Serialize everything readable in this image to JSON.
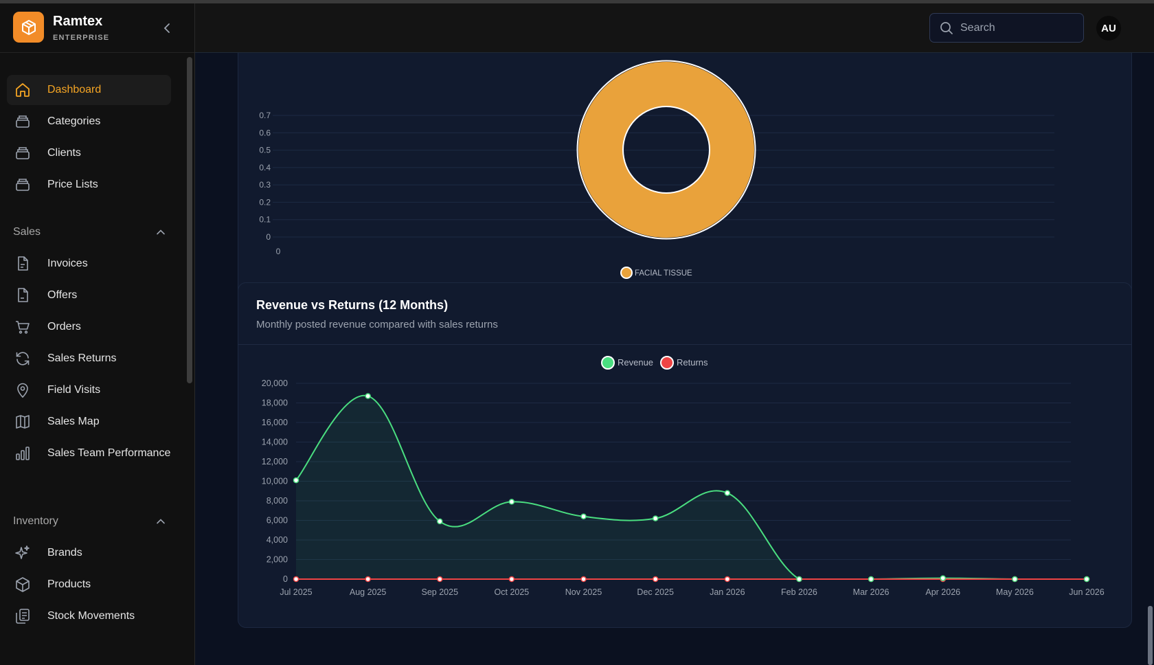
{
  "brand": {
    "name": "Ramtex",
    "subtitle": "ENTERPRISE"
  },
  "search": {
    "placeholder": "Search"
  },
  "user": {
    "initials": "AU"
  },
  "sidebar": {
    "items": [
      {
        "label": "Dashboard",
        "icon": "home-icon",
        "active": true
      },
      {
        "label": "Categories",
        "icon": "stack-icon"
      },
      {
        "label": "Clients",
        "icon": "stack-icon"
      },
      {
        "label": "Price Lists",
        "icon": "stack-icon"
      }
    ],
    "sales_section": "Sales",
    "sales_items": [
      {
        "label": "Invoices",
        "icon": "document-icon"
      },
      {
        "label": "Offers",
        "icon": "document-icon"
      },
      {
        "label": "Orders",
        "icon": "cart-icon"
      },
      {
        "label": "Sales Returns",
        "icon": "refresh-icon"
      },
      {
        "label": "Field Visits",
        "icon": "map-pin-icon"
      },
      {
        "label": "Sales Map",
        "icon": "map-icon"
      },
      {
        "label": "Sales Team Performance",
        "icon": "bar-chart-icon"
      }
    ],
    "inventory_section": "Inventory",
    "inventory_items": [
      {
        "label": "Brands",
        "icon": "sparkles-icon"
      },
      {
        "label": "Products",
        "icon": "cube-icon"
      },
      {
        "label": "Stock Movements",
        "icon": "clipboard-icon"
      }
    ]
  },
  "donut_card": {
    "chart_data": {
      "type": "pie",
      "y_ticks": [
        "0.7",
        "0.6",
        "0.5",
        "0.4",
        "0.3",
        "0.2",
        "0.1",
        "0"
      ],
      "x_ticks": [
        "0"
      ],
      "slices": [
        {
          "label": "FACIAL TISSUE",
          "value": 1,
          "color": "#e9a23b"
        }
      ],
      "legend": [
        "FACIAL TISSUE"
      ],
      "grid": true
    }
  },
  "revenue_card": {
    "title": "Revenue vs Returns (12 Months)",
    "subtitle": "Monthly posted revenue compared with sales returns",
    "chart_data": {
      "type": "line",
      "categories": [
        "Jul 2025",
        "Aug 2025",
        "Sep 2025",
        "Oct 2025",
        "Nov 2025",
        "Dec 2025",
        "Jan 2026",
        "Feb 2026",
        "Mar 2026",
        "Apr 2026",
        "May 2026",
        "Jun 2026"
      ],
      "series": [
        {
          "name": "Revenue",
          "color": "#4ade80",
          "values": [
            10100,
            18700,
            5900,
            7900,
            6400,
            6200,
            8800,
            0,
            0,
            100,
            0,
            0
          ]
        },
        {
          "name": "Returns",
          "color": "#ef4444",
          "values": [
            0,
            0,
            0,
            0,
            0,
            0,
            0,
            0,
            0,
            0,
            0,
            0
          ]
        }
      ],
      "ylim": [
        0,
        20000
      ],
      "y_ticks": [
        "20,000",
        "18,000",
        "16,000",
        "14,000",
        "12,000",
        "10,000",
        "8,000",
        "6,000",
        "4,000",
        "2,000",
        "0"
      ],
      "legend_position": "top-center",
      "grid": true
    }
  }
}
